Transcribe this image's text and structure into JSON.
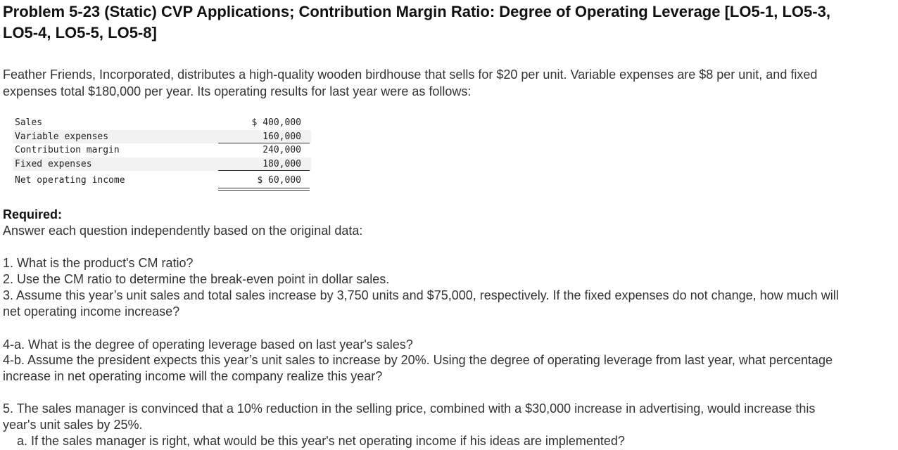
{
  "problem": {
    "title": "Problem 5-23 (Static) CVP Applications; Contribution Margin Ratio: Degree of Operating Leverage [LO5-1, LO5-3, LO5-4, LO5-5, LO5-8]",
    "intro": "Feather Friends, Incorporated, distributes a high-quality wooden birdhouse that sells for $20 per unit. Variable expenses are $8 per unit, and fixed expenses total $180,000 per year. Its operating results for last year were as follows:"
  },
  "income_statement": {
    "rows": [
      {
        "label": "Sales",
        "value": "$ 400,000"
      },
      {
        "label": "Variable expenses",
        "value": "160,000"
      },
      {
        "label": "Contribution margin",
        "value": "240,000"
      },
      {
        "label": "Fixed expenses",
        "value": "180,000"
      },
      {
        "label": "Net operating income",
        "value": "$ 60,000"
      }
    ]
  },
  "required": {
    "heading": "Required:",
    "instruction": "Answer each question independently based on the original data:",
    "q1": "1. What is the product's CM ratio?",
    "q2": "2. Use the CM ratio to determine the break-even point in dollar sales.",
    "q3": "3. Assume this year’s unit sales and total sales increase by 3,750 units and $75,000, respectively. If the fixed expenses do not change, how much will net operating income increase?",
    "q4a": "4-a. What is the degree of operating leverage based on last year's sales?",
    "q4b": "4-b. Assume the president expects this year’s unit sales to increase by 20%. Using the degree of operating leverage from last year, what percentage increase in net operating income will the company realize this year?",
    "q5": "5. The sales manager is convinced that a 10% reduction in the selling price, combined with a $30,000 increase in advertising, would increase this year's unit sales by 25%.",
    "q5a": "a. If the sales manager is right, what would be this year's net operating income if his ideas are implemented?"
  }
}
